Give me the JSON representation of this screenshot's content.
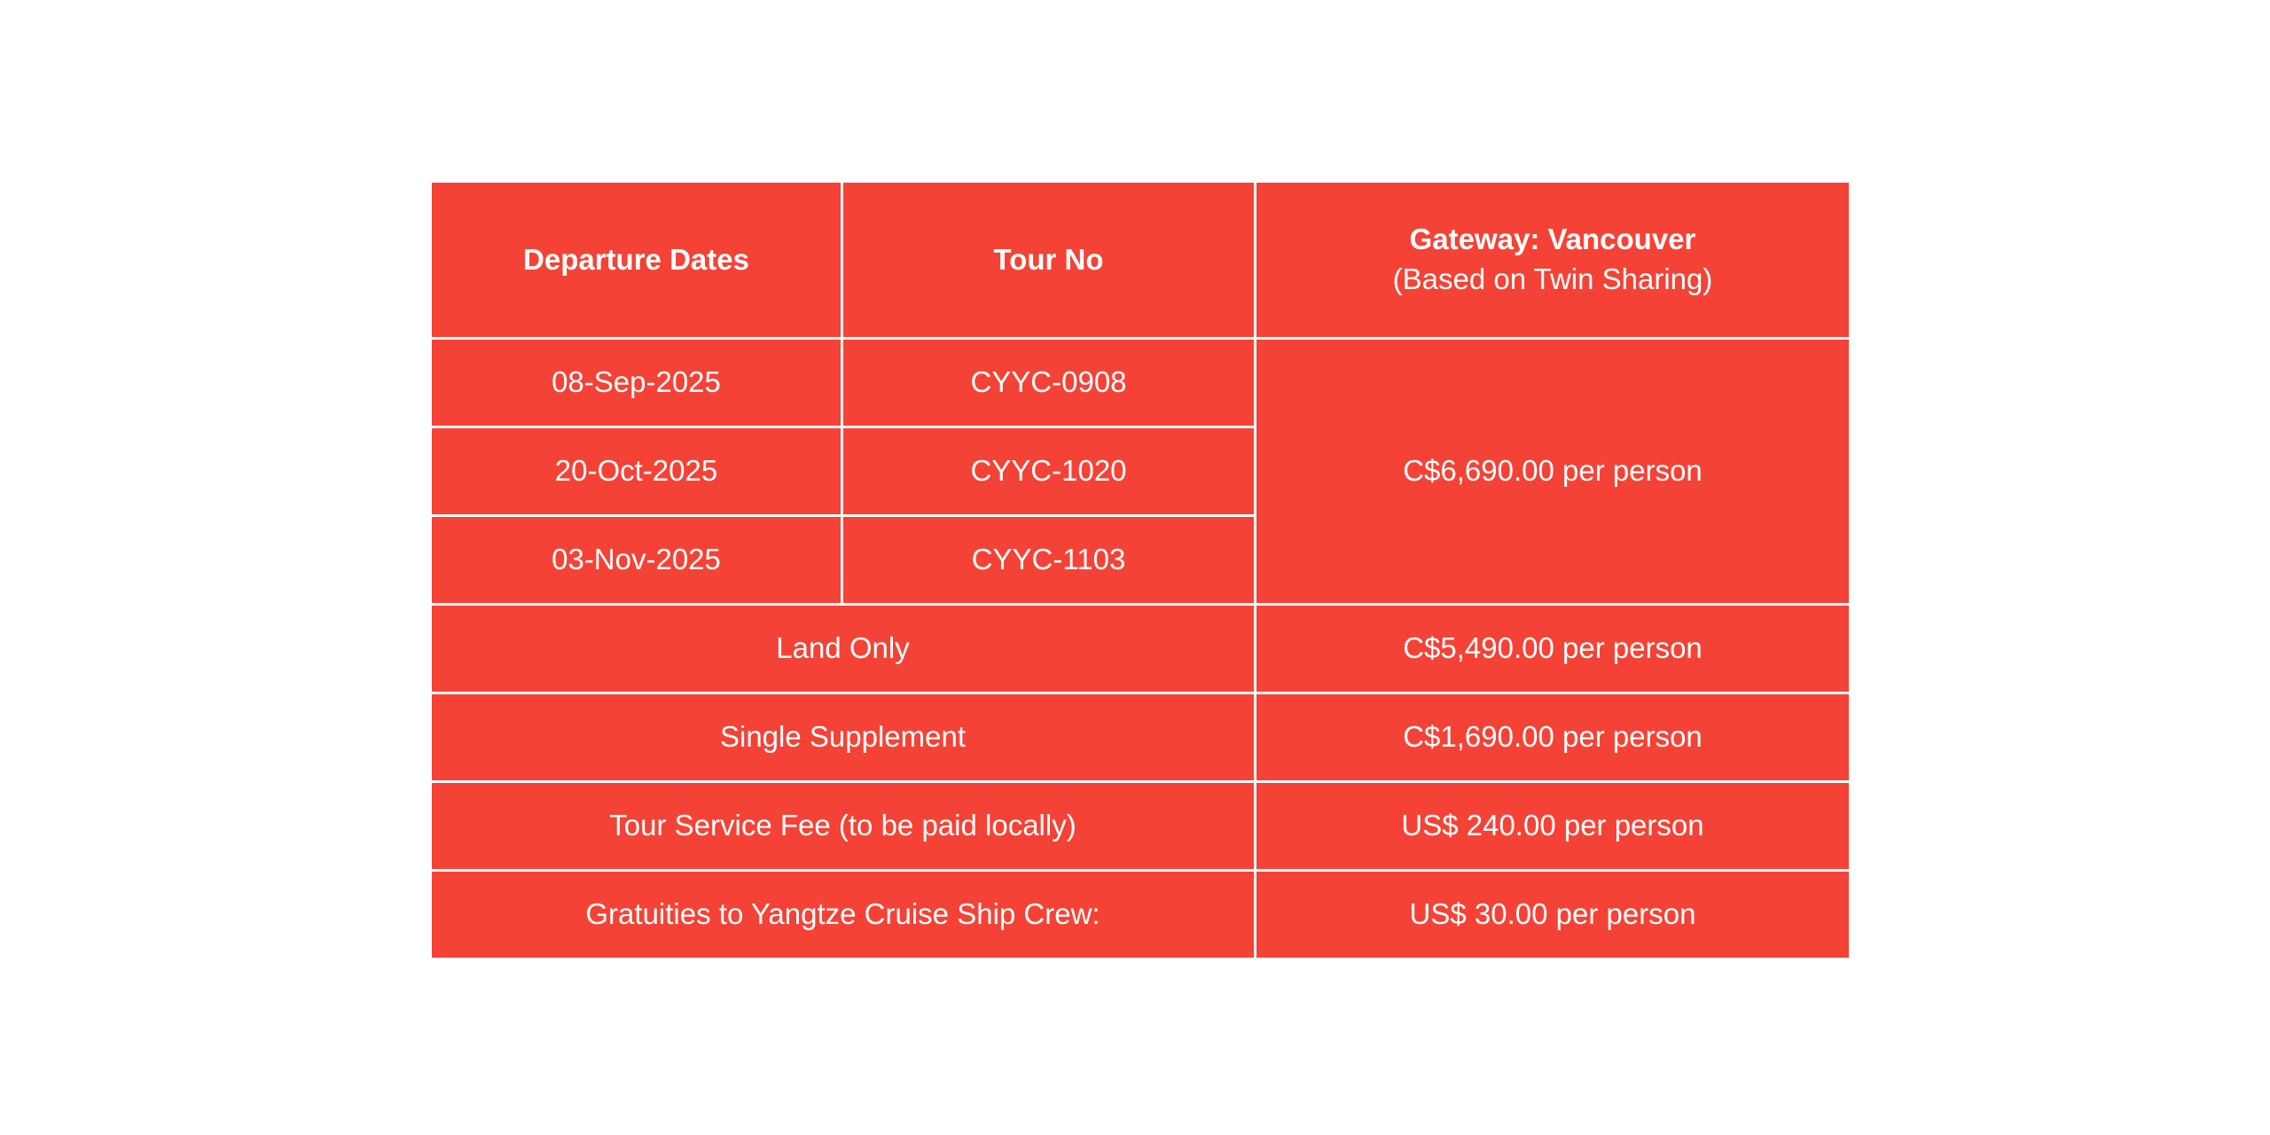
{
  "table": {
    "header": {
      "departure_dates": "Departure Dates",
      "tour_no": "Tour No",
      "gateway_title": "Gateway: Vancouver",
      "gateway_subtitle": "(Based on Twin Sharing)"
    },
    "departures": [
      {
        "date": "08-Sep-2025",
        "tour_no": "CYYC-0908"
      },
      {
        "date": "20-Oct-2025",
        "tour_no": "CYYC-1020"
      },
      {
        "date": "03-Nov-2025",
        "tour_no": "CYYC-1103"
      }
    ],
    "twin_sharing_price": "C$6,690.00 per person",
    "extras": [
      {
        "label": "Land Only",
        "price": "C$5,490.00 per person"
      },
      {
        "label": "Single Supplement",
        "price": "C$1,690.00 per person"
      },
      {
        "label": "Tour Service Fee (to be paid locally)",
        "price": "US$ 240.00 per person"
      },
      {
        "label": "Gratuities to Yangtze Cruise Ship Crew:",
        "price": "US$ 30.00 per person"
      }
    ],
    "colors": {
      "cell_background": "#f44336",
      "text": "#ffffff",
      "border": "#ffffff"
    }
  }
}
